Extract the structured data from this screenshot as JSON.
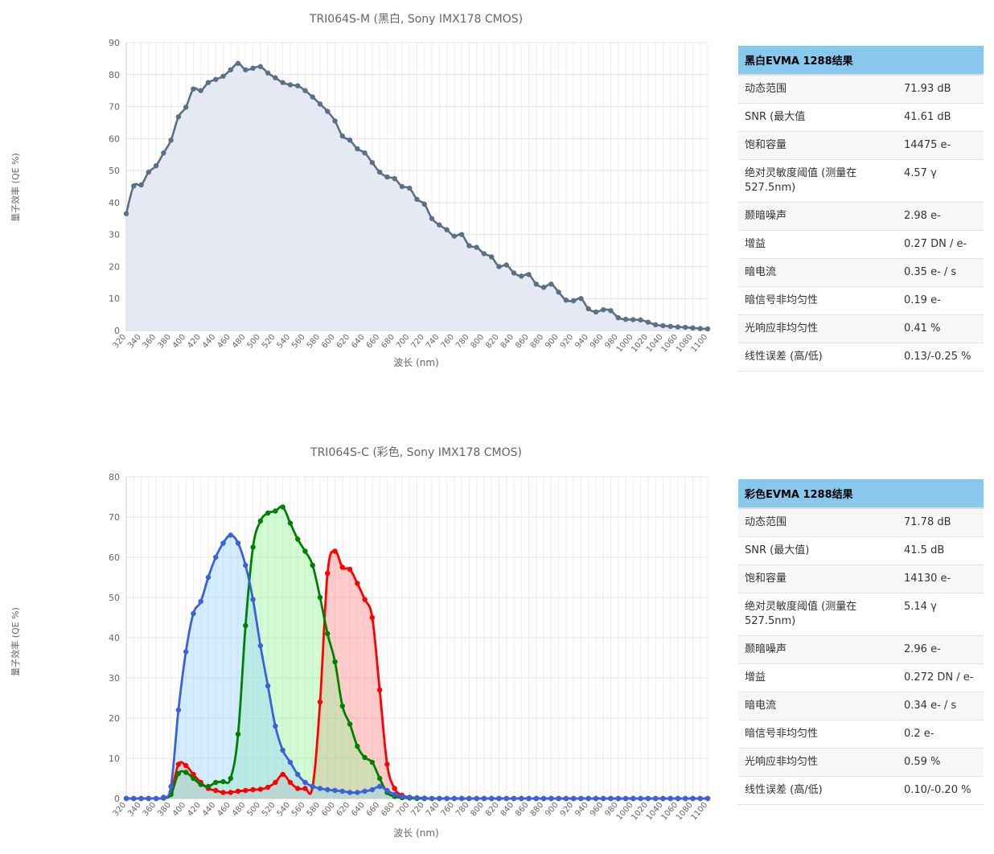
{
  "mono": {
    "title": "TRI064S-M (黑白, Sony IMX178 CMOS)",
    "ylabel": "量子效率 (QE %)",
    "xlabel": "波长 (nm)",
    "table_title": "黑白EVMA 1288结果",
    "rows": [
      {
        "k": "动态范围",
        "v": "71.93 dB"
      },
      {
        "k": "SNR (最大值",
        "v": "41.61 dB"
      },
      {
        "k": "饱和容量",
        "v": "14475 e-"
      },
      {
        "k": "绝对灵敏度阈值 (测量在527.5nm)",
        "v": "4.57 γ"
      },
      {
        "k": "颞暗噪声",
        "v": "2.98 e-"
      },
      {
        "k": "增益",
        "v": "0.27 DN / e-"
      },
      {
        "k": "暗电流",
        "v": "0.35 e- / s"
      },
      {
        "k": "暗信号非均匀性",
        "v": "0.19 e-"
      },
      {
        "k": "光响应非均匀性",
        "v": "0.41 %"
      },
      {
        "k": "线性误差 (高/低)",
        "v": "0.13/-0.25 %"
      }
    ]
  },
  "color": {
    "title": "TRI064S-C (彩色, Sony IMX178 CMOS)",
    "ylabel": "量子效率 (QE %)",
    "xlabel": "波长 (nm)",
    "table_title": "彩色EVMA 1288结果",
    "rows": [
      {
        "k": "动态范围",
        "v": "71.78 dB"
      },
      {
        "k": "SNR (最大值)",
        "v": "41.5 dB"
      },
      {
        "k": "饱和容量",
        "v": "14130 e-"
      },
      {
        "k": "绝对灵敏度阈值 (测量在527.5nm)",
        "v": "5.14 γ"
      },
      {
        "k": "颞暗噪声",
        "v": "2.96 e-"
      },
      {
        "k": "增益",
        "v": "0.272 DN / e-"
      },
      {
        "k": "暗电流",
        "v": "0.34 e- / s"
      },
      {
        "k": "暗信号非均匀性",
        "v": "0.2 e-"
      },
      {
        "k": "光响应非均匀性",
        "v": "0.59 %"
      },
      {
        "k": "线性误差 (高/低)",
        "v": "0.10/-0.20 %"
      }
    ]
  },
  "chart_data": [
    {
      "type": "area",
      "title": "TRI064S-M (黑白, Sony IMX178 CMOS)",
      "xlabel": "波长 (nm)",
      "ylabel": "量子效率 (QE %)",
      "xlim": [
        320,
        1100
      ],
      "ylim": [
        0,
        90
      ],
      "yticks": [
        0,
        10,
        20,
        30,
        40,
        50,
        60,
        70,
        80,
        90
      ],
      "xticks": [
        320,
        340,
        360,
        380,
        400,
        420,
        440,
        460,
        480,
        500,
        520,
        540,
        560,
        580,
        600,
        620,
        640,
        660,
        680,
        700,
        720,
        740,
        760,
        780,
        800,
        820,
        840,
        860,
        880,
        900,
        920,
        940,
        960,
        980,
        1000,
        1020,
        1040,
        1060,
        1080,
        1100
      ],
      "grid": true,
      "colors": {
        "line": "#5b7183",
        "fill": "#e6e9f4"
      },
      "x": [
        320,
        330,
        340,
        350,
        360,
        370,
        380,
        390,
        400,
        410,
        420,
        430,
        440,
        450,
        460,
        470,
        480,
        490,
        500,
        510,
        520,
        530,
        540,
        550,
        560,
        570,
        580,
        590,
        600,
        610,
        620,
        630,
        640,
        650,
        660,
        670,
        680,
        690,
        700,
        710,
        720,
        730,
        740,
        750,
        760,
        770,
        780,
        790,
        800,
        810,
        820,
        830,
        840,
        850,
        860,
        870,
        880,
        890,
        900,
        910,
        920,
        930,
        940,
        950,
        960,
        970,
        980,
        990,
        1000,
        1010,
        1020,
        1030,
        1040,
        1050,
        1060,
        1070,
        1080,
        1090,
        1100
      ],
      "series": [
        {
          "values": [
            36.5,
            45.2,
            45.5,
            49.5,
            51.5,
            55.5,
            59.5,
            66.8,
            69.8,
            75.5,
            75,
            77.5,
            78.5,
            79.5,
            81.5,
            83.5,
            81.5,
            82,
            82.5,
            80.5,
            79,
            77.5,
            76.8,
            76.5,
            75,
            73,
            70.8,
            68.5,
            65.5,
            60.8,
            59.5,
            56.8,
            55.5,
            52.5,
            49.5,
            48,
            47.5,
            45,
            44.5,
            41,
            39.5,
            35,
            33,
            31.5,
            29.5,
            30,
            26.5,
            26,
            24,
            23,
            20,
            20.5,
            18,
            17,
            17.5,
            14.5,
            13.5,
            14.5,
            12,
            9.5,
            9.3,
            10,
            6.8,
            5.8,
            6.5,
            6.2,
            4,
            3.5,
            3.4,
            3.3,
            2.6,
            1.8,
            1.5,
            1.3,
            1.1,
            1,
            0.8,
            0.6,
            0.5
          ]
        }
      ]
    },
    {
      "type": "area",
      "title": "TRI064S-C (彩色, Sony IMX178 CMOS)",
      "xlabel": "波长 (nm)",
      "ylabel": "量子效率 (QE %)",
      "xlim": [
        320,
        1100
      ],
      "ylim": [
        0,
        80
      ],
      "yticks": [
        0,
        10,
        20,
        30,
        40,
        50,
        60,
        70,
        80
      ],
      "xticks": [
        320,
        340,
        360,
        380,
        400,
        420,
        440,
        460,
        480,
        500,
        520,
        540,
        560,
        580,
        600,
        620,
        640,
        660,
        680,
        700,
        720,
        740,
        760,
        780,
        800,
        820,
        840,
        860,
        880,
        900,
        920,
        940,
        960,
        980,
        1000,
        1020,
        1040,
        1060,
        1080,
        1100
      ],
      "grid": true,
      "x": [
        320,
        330,
        340,
        350,
        360,
        370,
        380,
        390,
        400,
        410,
        420,
        430,
        440,
        450,
        460,
        470,
        480,
        490,
        500,
        510,
        520,
        530,
        540,
        550,
        560,
        570,
        580,
        590,
        600,
        610,
        620,
        630,
        640,
        650,
        660,
        670,
        680,
        690,
        700,
        710,
        720,
        730,
        740,
        750,
        760,
        770,
        780,
        790,
        800,
        810,
        820,
        830,
        840,
        850,
        860,
        870,
        880,
        890,
        900,
        910,
        920,
        930,
        940,
        950,
        960,
        970,
        980,
        990,
        1000,
        1010,
        1020,
        1030,
        1040,
        1050,
        1060,
        1070,
        1080,
        1090,
        1100
      ],
      "series": [
        {
          "color": "#ff0000",
          "fill": "rgba(255,130,130,0.42)",
          "values": [
            0,
            0,
            0,
            0,
            0,
            0.2,
            1.5,
            8.5,
            8.2,
            6,
            4,
            2.5,
            2,
            1.5,
            1.5,
            1.8,
            2,
            2.2,
            2.3,
            2.8,
            4,
            6,
            4,
            2.5,
            2.5,
            3,
            24,
            56,
            61.5,
            57.5,
            57,
            53.5,
            49.5,
            45,
            27,
            8.5,
            2.5,
            0.8,
            0.3,
            0.1,
            0,
            0,
            0,
            0,
            0,
            0,
            0,
            0,
            0,
            0,
            0,
            0,
            0,
            0,
            0,
            0,
            0,
            0,
            0,
            0,
            0,
            0,
            0,
            0,
            0,
            0,
            0,
            0,
            0,
            0,
            0,
            0,
            0,
            0,
            0,
            0,
            0,
            0,
            0
          ]
        },
        {
          "color": "#008000",
          "fill": "rgba(150,245,150,0.42)",
          "values": [
            0,
            0,
            0,
            0,
            0,
            0.1,
            1,
            6.2,
            6.5,
            5,
            3.5,
            3,
            4,
            4.2,
            5,
            16,
            43,
            62.5,
            69,
            71,
            71.5,
            72.5,
            68.5,
            64.5,
            61.5,
            58,
            50,
            41,
            34,
            23,
            18.5,
            13,
            10.2,
            9,
            5,
            1.5,
            0.5,
            0.2,
            0.1,
            0,
            0,
            0,
            0,
            0,
            0,
            0,
            0,
            0,
            0,
            0,
            0,
            0,
            0,
            0,
            0,
            0,
            0,
            0,
            0,
            0,
            0,
            0,
            0,
            0,
            0,
            0,
            0,
            0,
            0,
            0,
            0,
            0,
            0,
            0,
            0,
            0,
            0,
            0,
            0
          ]
        },
        {
          "color": "#3a62d8",
          "fill": "rgba(150,210,255,0.42)",
          "values": [
            0,
            0,
            0,
            0,
            0,
            0.3,
            3,
            22,
            36.5,
            46,
            49,
            55,
            60,
            63.5,
            65.5,
            63.5,
            58,
            49.5,
            38,
            28,
            18,
            12,
            9,
            6,
            4,
            3,
            2.5,
            2.2,
            2,
            1.8,
            1.5,
            1.5,
            1.8,
            2.2,
            3,
            2,
            1,
            0.5,
            0.3,
            0.2,
            0.1,
            0,
            0,
            0,
            0,
            0,
            0,
            0,
            0,
            0,
            0,
            0,
            0,
            0,
            0,
            0,
            0,
            0,
            0,
            0,
            0,
            0,
            0,
            0,
            0,
            0,
            0,
            0,
            0,
            0,
            0,
            0,
            0,
            0,
            0,
            0,
            0,
            0,
            0
          ]
        }
      ]
    }
  ]
}
